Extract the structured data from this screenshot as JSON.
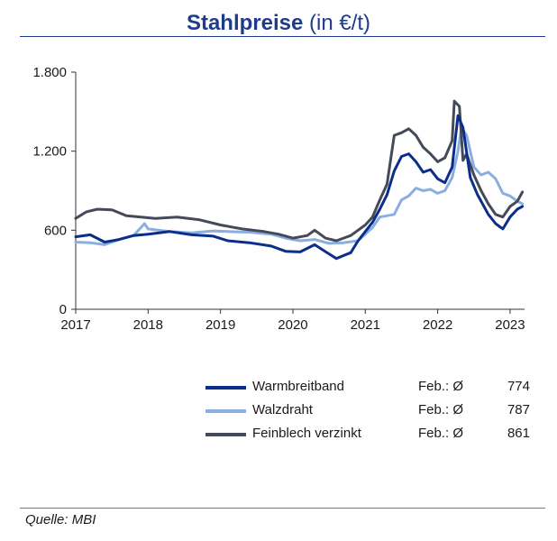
{
  "title": {
    "bold": "Stahlpreise",
    "normal": "(in €/t)"
  },
  "source": "Quelle: MBI",
  "chart_data": {
    "type": "line",
    "title": "Stahlpreise (in €/t)",
    "xlabel": "",
    "ylabel": "",
    "xlim": [
      2017,
      2023.2
    ],
    "ylim": [
      0,
      1800
    ],
    "yticks": [
      0,
      600,
      1200,
      1800
    ],
    "ytick_labels": [
      "0",
      "600",
      "1.200",
      "1.800"
    ],
    "xticks": [
      2017,
      2018,
      2019,
      2020,
      2021,
      2022,
      2023
    ],
    "xtick_labels": [
      "2017",
      "2018",
      "2019",
      "2020",
      "2021",
      "2022",
      "2023"
    ],
    "grid": false,
    "legend_position": "bottom",
    "series": [
      {
        "name": "Warmbreitband",
        "color": "#0b2e8a",
        "stat_label": "Feb.: Ø",
        "stat_value": "774",
        "points": [
          [
            2017.0,
            550
          ],
          [
            2017.2,
            565
          ],
          [
            2017.4,
            510
          ],
          [
            2017.6,
            530
          ],
          [
            2017.8,
            560
          ],
          [
            2018.0,
            570
          ],
          [
            2018.3,
            590
          ],
          [
            2018.6,
            565
          ],
          [
            2018.9,
            555
          ],
          [
            2019.1,
            520
          ],
          [
            2019.4,
            505
          ],
          [
            2019.7,
            480
          ],
          [
            2019.9,
            440
          ],
          [
            2020.1,
            435
          ],
          [
            2020.3,
            490
          ],
          [
            2020.5,
            420
          ],
          [
            2020.6,
            385
          ],
          [
            2020.8,
            430
          ],
          [
            2020.9,
            520
          ],
          [
            2021.0,
            590
          ],
          [
            2021.1,
            660
          ],
          [
            2021.2,
            760
          ],
          [
            2021.3,
            870
          ],
          [
            2021.4,
            1050
          ],
          [
            2021.5,
            1160
          ],
          [
            2021.6,
            1180
          ],
          [
            2021.7,
            1120
          ],
          [
            2021.8,
            1040
          ],
          [
            2021.9,
            1060
          ],
          [
            2022.0,
            990
          ],
          [
            2022.1,
            960
          ],
          [
            2022.2,
            1080
          ],
          [
            2022.28,
            1470
          ],
          [
            2022.35,
            1380
          ],
          [
            2022.45,
            1000
          ],
          [
            2022.55,
            870
          ],
          [
            2022.7,
            720
          ],
          [
            2022.8,
            650
          ],
          [
            2022.9,
            610
          ],
          [
            2023.0,
            700
          ],
          [
            2023.1,
            760
          ],
          [
            2023.17,
            780
          ]
        ]
      },
      {
        "name": "Walzdraht",
        "color": "#8aaee0",
        "stat_label": "Feb.: Ø",
        "stat_value": "787",
        "points": [
          [
            2017.0,
            510
          ],
          [
            2017.2,
            505
          ],
          [
            2017.4,
            490
          ],
          [
            2017.6,
            530
          ],
          [
            2017.8,
            560
          ],
          [
            2017.95,
            650
          ],
          [
            2018.0,
            610
          ],
          [
            2018.3,
            590
          ],
          [
            2018.6,
            580
          ],
          [
            2018.9,
            595
          ],
          [
            2019.1,
            590
          ],
          [
            2019.4,
            585
          ],
          [
            2019.7,
            570
          ],
          [
            2019.9,
            540
          ],
          [
            2020.1,
            520
          ],
          [
            2020.3,
            530
          ],
          [
            2020.5,
            500
          ],
          [
            2020.7,
            505
          ],
          [
            2020.9,
            520
          ],
          [
            2021.0,
            570
          ],
          [
            2021.1,
            620
          ],
          [
            2021.2,
            700
          ],
          [
            2021.3,
            710
          ],
          [
            2021.4,
            720
          ],
          [
            2021.5,
            830
          ],
          [
            2021.6,
            860
          ],
          [
            2021.7,
            920
          ],
          [
            2021.8,
            900
          ],
          [
            2021.9,
            910
          ],
          [
            2022.0,
            880
          ],
          [
            2022.1,
            900
          ],
          [
            2022.2,
            1000
          ],
          [
            2022.28,
            1200
          ],
          [
            2022.33,
            1380
          ],
          [
            2022.4,
            1320
          ],
          [
            2022.5,
            1080
          ],
          [
            2022.6,
            1020
          ],
          [
            2022.7,
            1040
          ],
          [
            2022.8,
            990
          ],
          [
            2022.9,
            880
          ],
          [
            2023.0,
            860
          ],
          [
            2023.1,
            820
          ],
          [
            2023.17,
            800
          ]
        ]
      },
      {
        "name": "Feinblech verzinkt",
        "color": "#444a59",
        "stat_label": "Feb.: Ø",
        "stat_value": "861",
        "points": [
          [
            2017.0,
            690
          ],
          [
            2017.15,
            740
          ],
          [
            2017.3,
            760
          ],
          [
            2017.5,
            755
          ],
          [
            2017.7,
            710
          ],
          [
            2017.9,
            700
          ],
          [
            2018.1,
            690
          ],
          [
            2018.4,
            700
          ],
          [
            2018.7,
            680
          ],
          [
            2019.0,
            640
          ],
          [
            2019.3,
            610
          ],
          [
            2019.6,
            590
          ],
          [
            2019.8,
            570
          ],
          [
            2020.0,
            540
          ],
          [
            2020.2,
            560
          ],
          [
            2020.3,
            600
          ],
          [
            2020.45,
            540
          ],
          [
            2020.6,
            520
          ],
          [
            2020.8,
            560
          ],
          [
            2020.9,
            600
          ],
          [
            2021.0,
            640
          ],
          [
            2021.1,
            700
          ],
          [
            2021.2,
            830
          ],
          [
            2021.3,
            950
          ],
          [
            2021.4,
            1320
          ],
          [
            2021.5,
            1340
          ],
          [
            2021.6,
            1370
          ],
          [
            2021.7,
            1320
          ],
          [
            2021.8,
            1230
          ],
          [
            2021.9,
            1180
          ],
          [
            2022.0,
            1120
          ],
          [
            2022.1,
            1150
          ],
          [
            2022.2,
            1280
          ],
          [
            2022.23,
            1580
          ],
          [
            2022.3,
            1540
          ],
          [
            2022.35,
            1130
          ],
          [
            2022.4,
            1180
          ],
          [
            2022.5,
            1020
          ],
          [
            2022.6,
            900
          ],
          [
            2022.7,
            800
          ],
          [
            2022.8,
            720
          ],
          [
            2022.9,
            700
          ],
          [
            2023.0,
            780
          ],
          [
            2023.1,
            820
          ],
          [
            2023.17,
            890
          ]
        ]
      }
    ]
  }
}
